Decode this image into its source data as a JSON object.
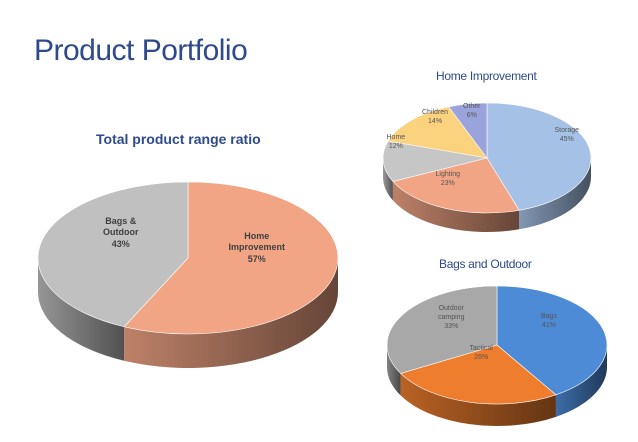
{
  "page": {
    "title": "Product Portfolio"
  },
  "chart_data": [
    {
      "type": "pie",
      "title": "Total product range ratio",
      "categories": [
        "Home Improvement",
        "Bags & Outdoor"
      ],
      "values": [
        57,
        43
      ],
      "value_labels": [
        "57%",
        "43%"
      ],
      "colors": [
        "#f2a585",
        "#c0c0c0"
      ]
    },
    {
      "type": "pie",
      "title": "Home Improvement",
      "categories": [
        "Storage",
        "Lighting",
        "Home",
        "Children",
        "Other"
      ],
      "values": [
        45,
        23,
        12,
        14,
        6
      ],
      "value_labels": [
        "45%",
        "23%",
        "12%",
        "14%",
        "6%"
      ],
      "colors": [
        "#a6c1e6",
        "#f2a585",
        "#c6c6c6",
        "#fbd27e",
        "#9aa3dc"
      ]
    },
    {
      "type": "pie",
      "title": "Bags and Outdoor",
      "categories": [
        "Bags",
        "Tactical",
        "Outdoor camping"
      ],
      "values": [
        41,
        26,
        33
      ],
      "value_labels": [
        "41%",
        "26%",
        "33%"
      ],
      "colors": [
        "#4d8bd6",
        "#ef7d2e",
        "#a8a8a8"
      ]
    }
  ]
}
